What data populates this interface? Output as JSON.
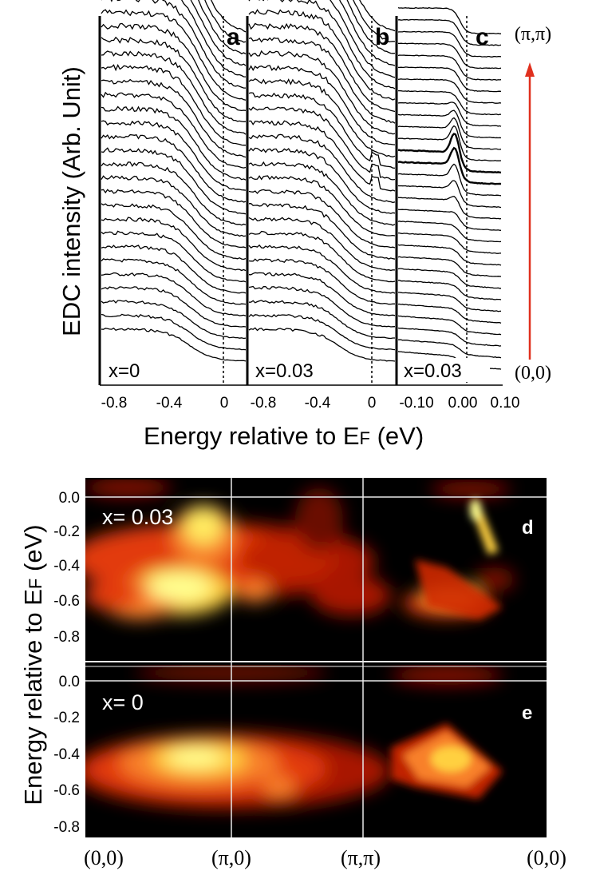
{
  "chart_data": [
    {
      "type": "line",
      "panels": [
        {
          "label": "a",
          "annotation": "x=0",
          "xlim": [
            -0.95,
            0.15
          ],
          "ticks": [
            -0.8,
            -0.4,
            0
          ],
          "tick_labels": [
            "-0.8",
            "-0.4",
            "0"
          ],
          "fermi_line": 0,
          "n_curves": 30
        },
        {
          "label": "b",
          "annotation": "x=0.03",
          "xlim": [
            -0.95,
            0.15
          ],
          "ticks": [
            -0.8,
            -0.4,
            0
          ],
          "tick_labels": [
            "-0.8",
            "-0.4",
            "0"
          ],
          "fermi_line": 0,
          "n_curves": 30
        },
        {
          "label": "c",
          "annotation": "x=0.03",
          "xlim": [
            -0.15,
            0.1
          ],
          "ticks": [
            -0.1,
            0,
            0.1
          ],
          "tick_labels": [
            "-0.10",
            "0.00",
            "0.10"
          ],
          "fermi_line": 0.0,
          "n_curves": 30
        }
      ],
      "xlabel": "Energy relative to E",
      "xlabel_sub": "F",
      "xlabel_unit": " (eV)",
      "ylabel": "EDC intensity (Arb. Unit)",
      "momentum_top": "(π,π)",
      "momentum_bottom": "(0,0)",
      "arrow_color": "#e0301e"
    },
    {
      "type": "heatmap",
      "ylabel": "Energy relative to E",
      "ylabel_sub": "F",
      "ylabel_unit": " (eV)",
      "ylim": [
        -0.8,
        0.05
      ],
      "yticks": [
        "0.0",
        "-0.2",
        "-0.4",
        "-0.6",
        "-0.8"
      ],
      "xticks": [
        "(0,0)",
        "(π,0)",
        "(π,π)",
        "(0,0)"
      ],
      "panels": [
        {
          "label": "d",
          "annotation": "x= 0.03"
        },
        {
          "label": "e",
          "annotation": "x= 0"
        }
      ],
      "colormap": [
        "#000000",
        "#5a0a00",
        "#b01800",
        "#e23a10",
        "#f8802a",
        "#ffd040",
        "#ffff90"
      ]
    }
  ]
}
